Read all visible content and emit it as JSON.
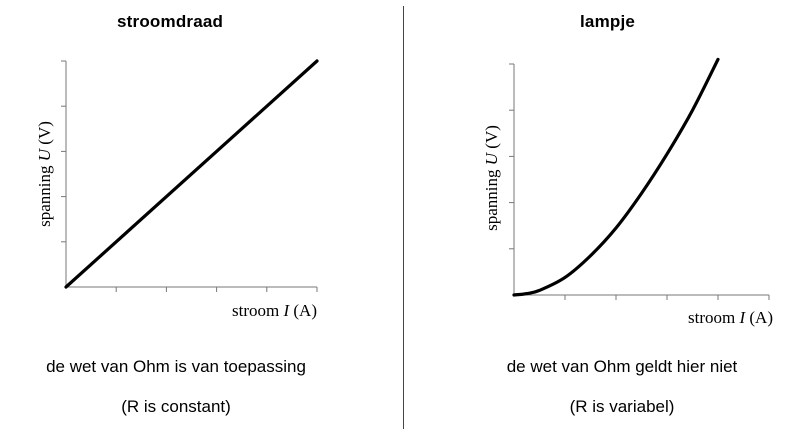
{
  "chart_data": [
    {
      "type": "line",
      "title": "stroomdraad",
      "xlabel": "stroom I (A)",
      "ylabel": "spanning U (V)",
      "x_ticks": 5,
      "y_ticks": 5,
      "grid": false,
      "series": [
        {
          "x": [
            0,
            5
          ],
          "y": [
            0,
            5
          ]
        }
      ],
      "caption_line1": "de wet van Ohm is van toepassing",
      "caption_line2": "(R is constant)",
      "stroke_color": "#000000"
    },
    {
      "type": "line",
      "title": "lampje",
      "xlabel": "stroom I (A)",
      "ylabel": "spanning U (V)",
      "x_ticks": 5,
      "y_ticks": 5,
      "grid": false,
      "series": [
        {
          "x": [
            0,
            0.25,
            0.5,
            1.0,
            1.5,
            2.0,
            2.5,
            3.0,
            3.5,
            4.0
          ],
          "y": [
            0,
            0.03,
            0.1,
            0.38,
            0.85,
            1.45,
            2.2,
            3.05,
            4.0,
            5.1
          ]
        }
      ],
      "caption_line1": "de wet van Ohm geldt hier niet",
      "caption_line2": "(R is variabel)",
      "stroke_color": "#000000"
    }
  ]
}
